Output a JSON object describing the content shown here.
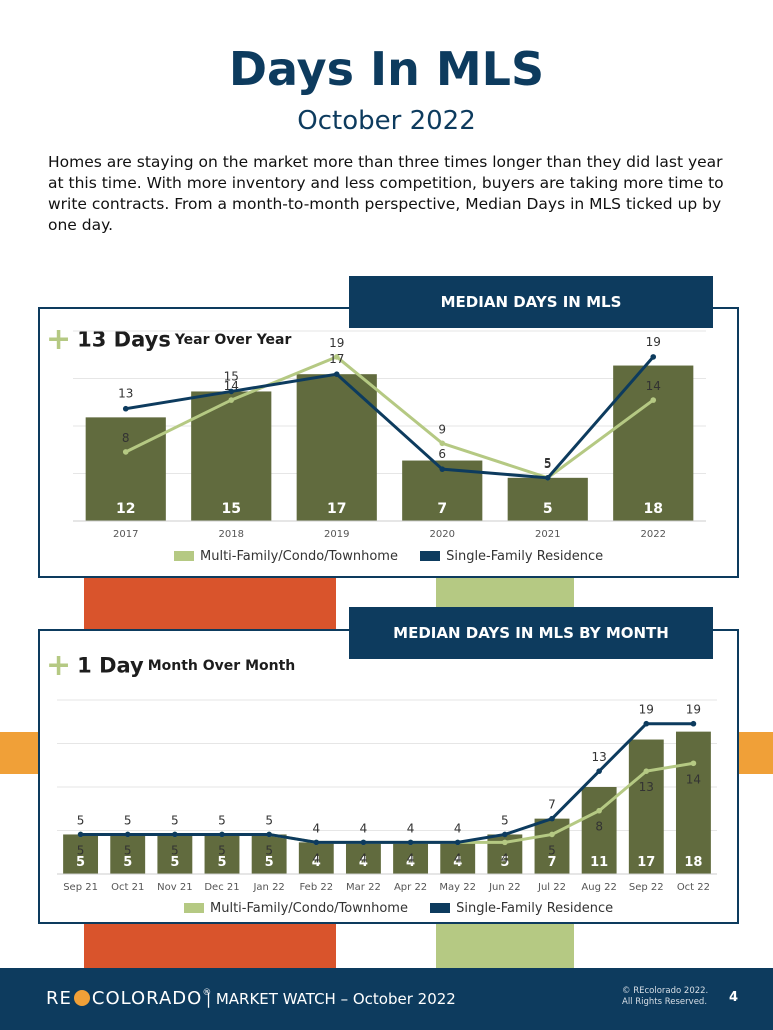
{
  "page": {
    "title": "Days In MLS",
    "subtitle": "October 2022",
    "intro": "Homes are staying on the market more than three times longer than they did last year at this time. With more inventory and less competition, buyers are taking more time to write contracts. From a month-to-month perspective, Median Days in MLS ticked up by one day."
  },
  "colors": {
    "navy": "#0d3b5e",
    "bar": "#616b3e",
    "light_green": "#b5c983",
    "orange_red": "#d9542c",
    "orange": "#f0a038"
  },
  "yearly": {
    "header": "MEDIAN DAYS IN MLS",
    "kpi_plus": "+",
    "kpi_value": "13 Days",
    "kpi_label": "Year Over Year",
    "legend_mf": "Multi-Family/Condo/Townhome",
    "legend_sf": "Single-Family Residence"
  },
  "monthly": {
    "header": "MEDIAN DAYS IN MLS BY MONTH",
    "kpi_plus": "+",
    "kpi_value": "1 Day",
    "kpi_label": "Month Over Month",
    "legend_mf": "Multi-Family/Condo/Townhome",
    "legend_sf": "Single-Family Residence"
  },
  "footer": {
    "logo_re": "RE",
    "logo_colorado": "COLORADO",
    "reg": "®",
    "market_watch": "|  MARKET WATCH – October 2022",
    "copyright_1": "© REcolorado 2022.",
    "copyright_2": "All Rights Reserved.",
    "page_number": "4"
  },
  "chart_data": [
    {
      "type": "bar",
      "title": "MEDIAN DAYS IN MLS",
      "categories": [
        "2017",
        "2018",
        "2019",
        "2020",
        "2021",
        "2022"
      ],
      "ylim": [
        0,
        22
      ],
      "grid": true,
      "legend": "bottom",
      "series": [
        {
          "name": "",
          "type": "bar",
          "values": [
            12,
            15,
            17,
            7,
            5,
            18
          ]
        },
        {
          "name": "Multi-Family/Condo/Townhome",
          "type": "line",
          "values": [
            8,
            14,
            19,
            9,
            5,
            14
          ]
        },
        {
          "name": "Single-Family Residence",
          "type": "line",
          "values": [
            13,
            15,
            17,
            6,
            5,
            19
          ]
        }
      ]
    },
    {
      "type": "bar",
      "title": "MEDIAN DAYS IN MLS BY MONTH",
      "categories": [
        "Sep 21",
        "Oct 21",
        "Nov 21",
        "Dec 21",
        "Jan 22",
        "Feb 22",
        "Mar 22",
        "Apr 22",
        "May 22",
        "Jun 22",
        "Jul 22",
        "Aug 22",
        "Sep 22",
        "Oct 22"
      ],
      "ylim": [
        0,
        22
      ],
      "grid": true,
      "legend": "bottom",
      "series": [
        {
          "name": "",
          "type": "bar",
          "values": [
            5,
            5,
            5,
            5,
            5,
            4,
            4,
            4,
            4,
            5,
            7,
            11,
            17,
            18
          ]
        },
        {
          "name": "Multi-Family/Condo/Townhome",
          "type": "line",
          "values": [
            5,
            5,
            5,
            5,
            5,
            4,
            4,
            4,
            4,
            4,
            5,
            8,
            13,
            14
          ]
        },
        {
          "name": "Single-Family Residence",
          "type": "line",
          "values": [
            5,
            5,
            5,
            5,
            5,
            4,
            4,
            4,
            4,
            5,
            7,
            13,
            19,
            19
          ]
        }
      ]
    }
  ]
}
